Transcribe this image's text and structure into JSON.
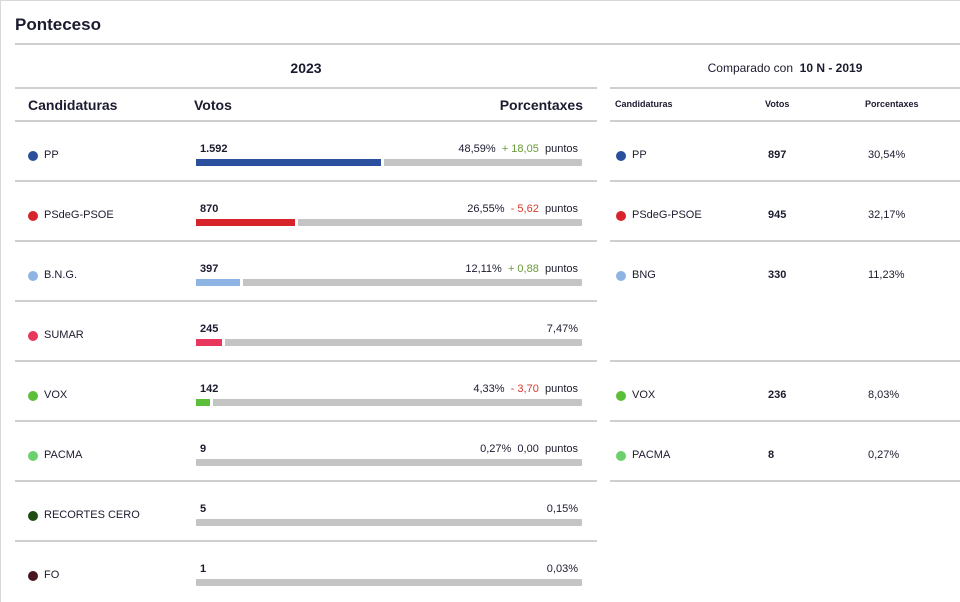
{
  "municipality": "Ponteceso",
  "current": {
    "year": "2023",
    "headers": {
      "candidates": "Candidaturas",
      "votes": "Votos",
      "percentages": "Porcentaxes"
    },
    "points_label": "puntos",
    "rows": [
      {
        "party": "PP",
        "color": "#2a4f9c",
        "votes": "1.592",
        "pct": "48,59%",
        "change": "+ 18,05",
        "change_kind": "pos",
        "share": 48.59
      },
      {
        "party": "PSdeG-PSOE",
        "color": "#d6242a",
        "votes": "870",
        "pct": "26,55%",
        "change": "- 5,62",
        "change_kind": "neg",
        "share": 26.55
      },
      {
        "party": "B.N.G.",
        "color": "#8eb4e3",
        "votes": "397",
        "pct": "12,11%",
        "change": "+ 0,88",
        "change_kind": "pos",
        "share": 12.11
      },
      {
        "party": "SUMAR",
        "color": "#e8365c",
        "votes": "245",
        "pct": "7,47%",
        "change": "",
        "change_kind": "none",
        "share": 7.47
      },
      {
        "party": "VOX",
        "color": "#5cbf3a",
        "votes": "142",
        "pct": "4,33%",
        "change": "- 3,70",
        "change_kind": "neg",
        "share": 4.33
      },
      {
        "party": "PACMA",
        "color": "#6cd06c",
        "votes": "9",
        "pct": "0,27%",
        "change": "0,00",
        "change_kind": "zero",
        "share": 0.27
      },
      {
        "party": "RECORTES CERO",
        "color": "#1e4d14",
        "votes": "5",
        "pct": "0,15%",
        "change": "",
        "change_kind": "none",
        "share": 0.15
      },
      {
        "party": "FO",
        "color": "#4a1420",
        "votes": "1",
        "pct": "0,03%",
        "change": "",
        "change_kind": "none",
        "share": 0.03
      }
    ]
  },
  "comparison": {
    "label": "Comparado con",
    "election": "10 N - 2019",
    "headers": {
      "candidates": "Candidaturas",
      "votes": "Votos",
      "percentages": "Porcentaxes"
    },
    "rows": [
      {
        "party": "PP",
        "color": "#2a4f9c",
        "votes": "897",
        "pct": "30,54%"
      },
      {
        "party": "PSdeG-PSOE",
        "color": "#d6242a",
        "votes": "945",
        "pct": "32,17%"
      },
      {
        "party": "BNG",
        "color": "#8eb4e3",
        "votes": "330",
        "pct": "11,23%"
      },
      null,
      {
        "party": "VOX",
        "color": "#5cbf3a",
        "votes": "236",
        "pct": "8,03%"
      },
      {
        "party": "PACMA",
        "color": "#6cd06c",
        "votes": "8",
        "pct": "0,27%"
      }
    ]
  }
}
